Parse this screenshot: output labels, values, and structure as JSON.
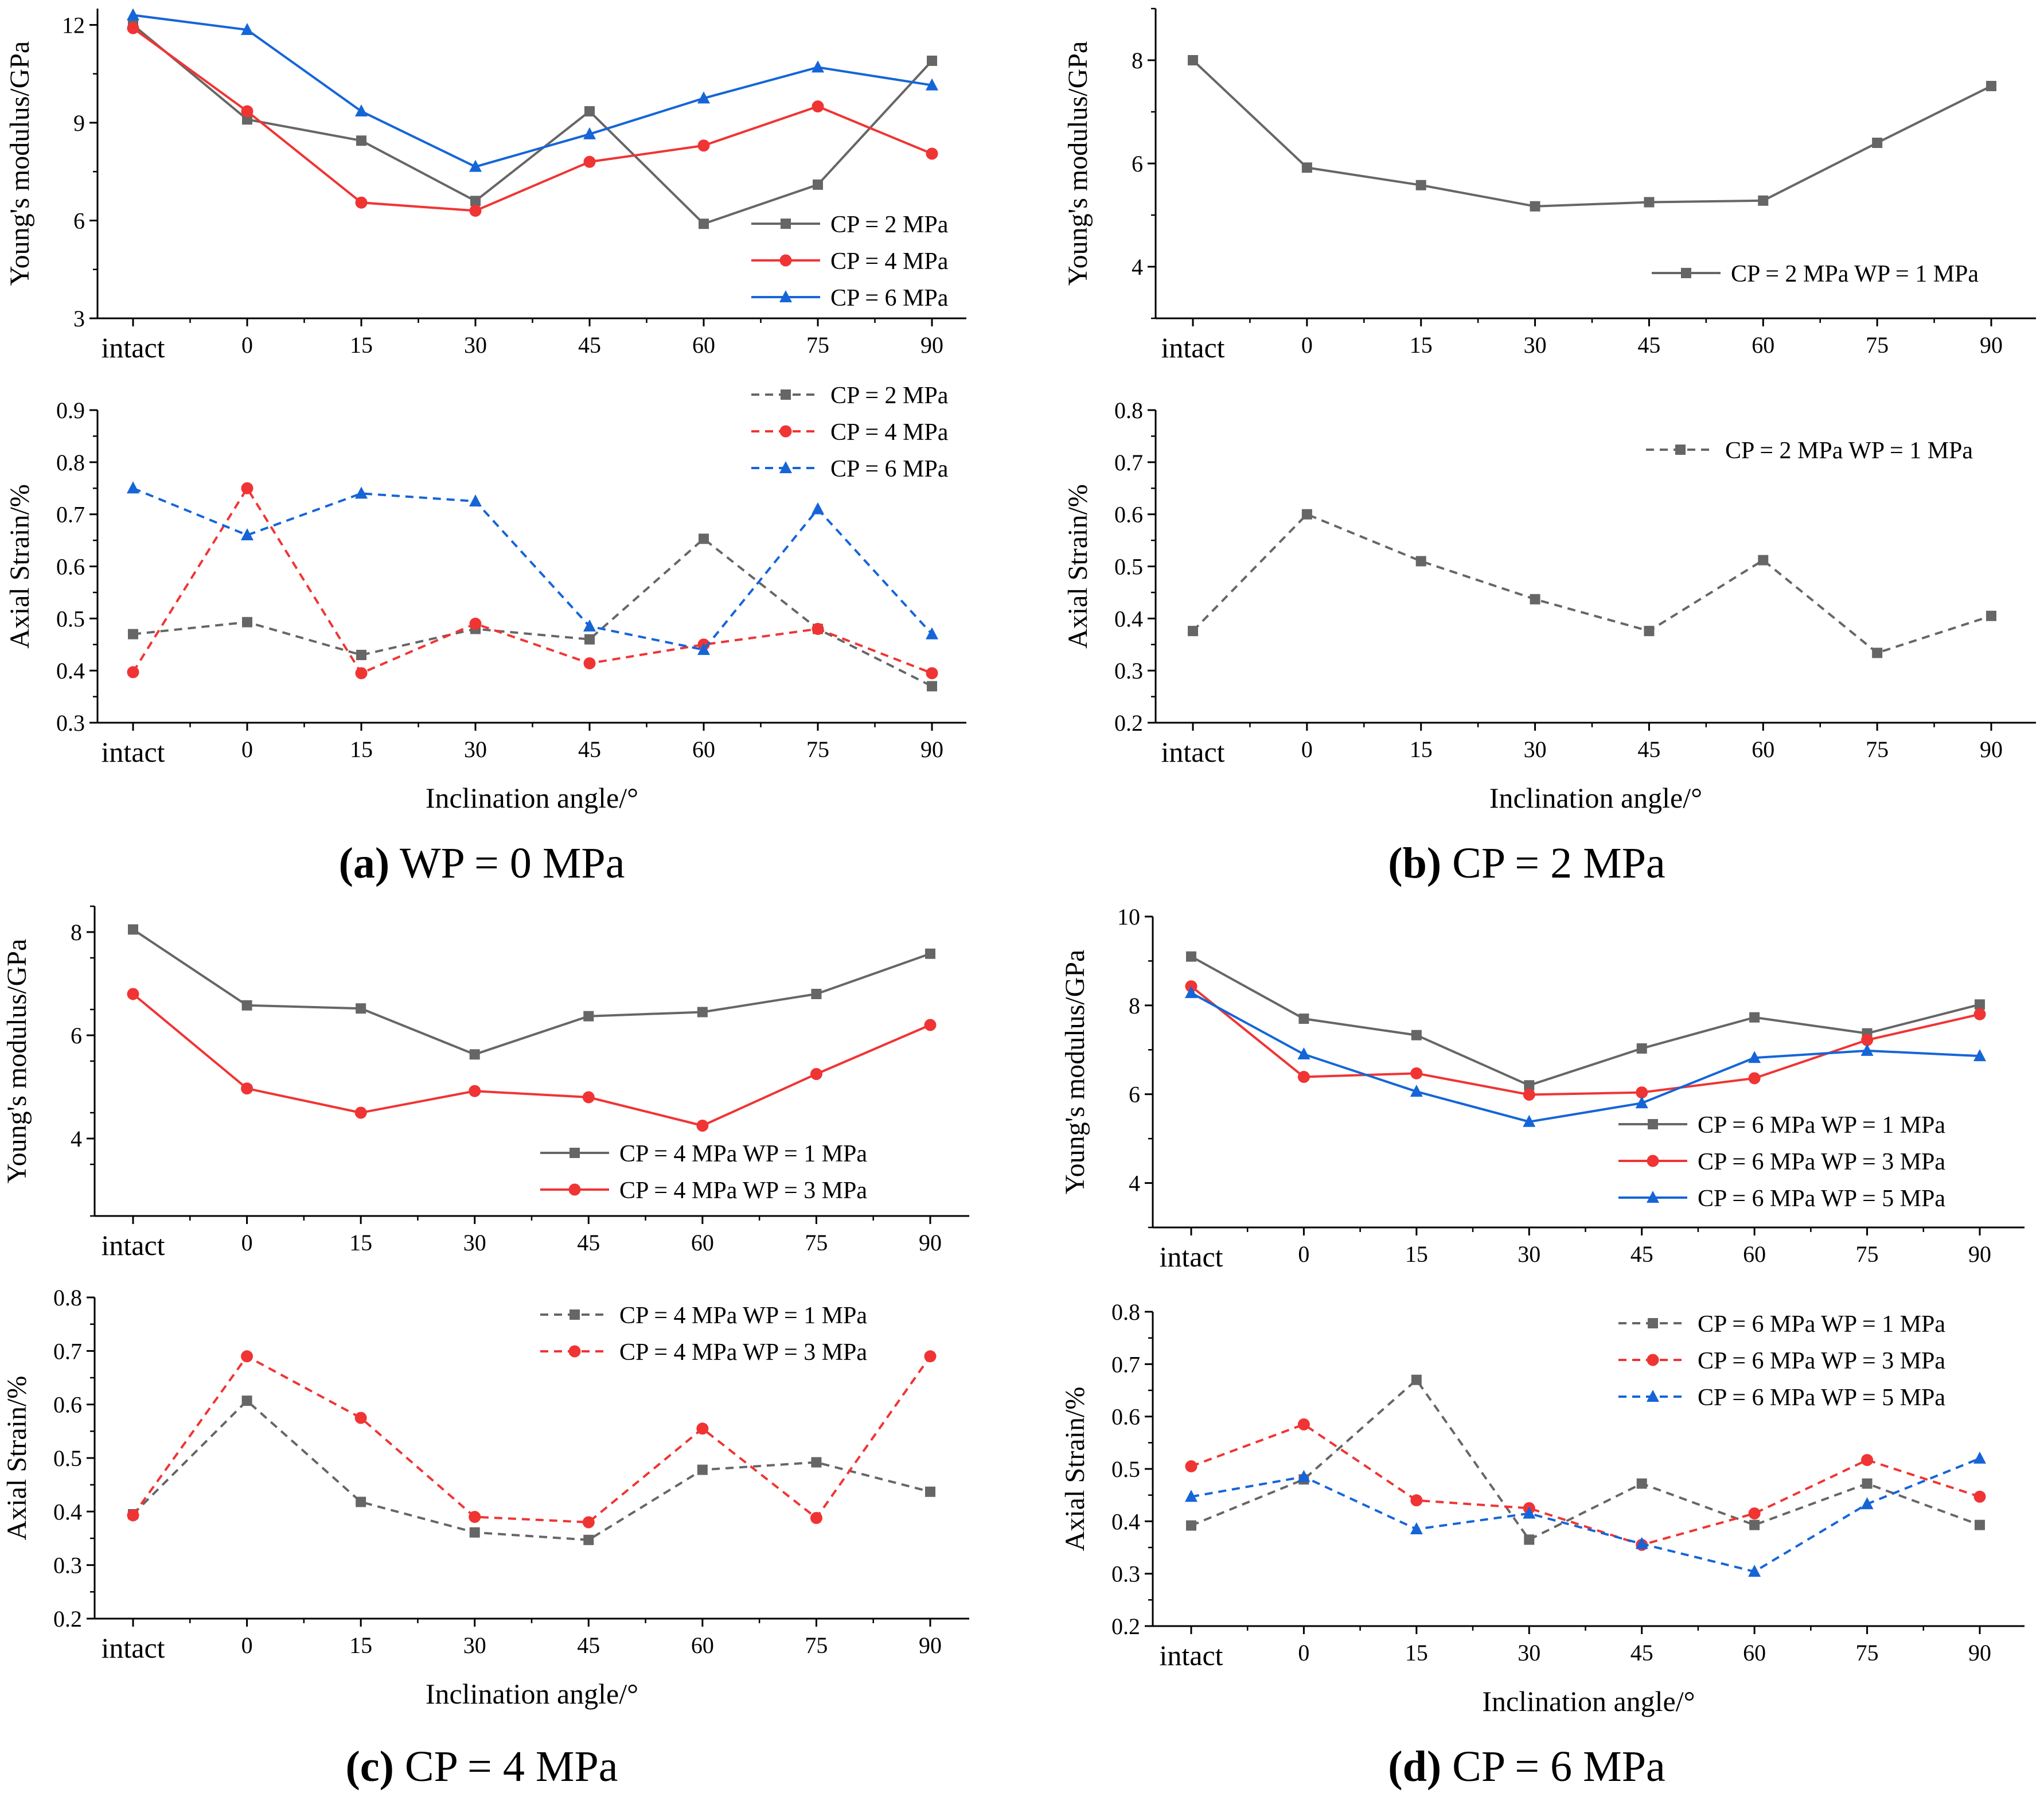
{
  "figure": {
    "panel_titles": [
      {
        "letter": "(a)",
        "rest": " WP = 0 MPa"
      },
      {
        "letter": "(b)",
        "rest": " CP = 2 MPa"
      },
      {
        "letter": "(c)",
        "rest": " CP = 4 MPa"
      },
      {
        "letter": "(d)",
        "rest": " CP = 6 MPa"
      }
    ]
  },
  "colors": {
    "gray": "#666666",
    "red": "#f03434",
    "blue": "#1565d8",
    "axis": "#000000"
  },
  "chart_data": [
    {
      "id": "a-top",
      "type": "line",
      "panel": "(a)",
      "xlabel": "",
      "ylabel": "Young's modulus/GPa",
      "categories": [
        "intact",
        "0",
        "15",
        "30",
        "45",
        "60",
        "75",
        "90"
      ],
      "ylim": [
        3,
        12.5
      ],
      "yticks": [
        3,
        6,
        9,
        12
      ],
      "legend_position": "bottom-right",
      "series": [
        {
          "name": "CP = 2 MPa",
          "color": "gray",
          "marker": "square",
          "dashed": false,
          "values": [
            12.0,
            9.1,
            8.45,
            6.6,
            9.35,
            5.9,
            7.1,
            10.9
          ]
        },
        {
          "name": "CP = 4 MPa",
          "color": "red",
          "marker": "circle",
          "dashed": false,
          "values": [
            11.9,
            9.35,
            6.55,
            6.3,
            7.8,
            8.3,
            9.5,
            8.05
          ]
        },
        {
          "name": "CP = 6 MPa",
          "color": "blue",
          "marker": "triangle",
          "dashed": false,
          "values": [
            12.3,
            11.85,
            9.35,
            7.65,
            8.65,
            9.75,
            10.7,
            10.15
          ]
        }
      ]
    },
    {
      "id": "a-bottom",
      "type": "line",
      "panel": "(a)",
      "xlabel": "Inclination angle/°",
      "ylabel": "Axial Strain/%",
      "categories": [
        "intact",
        "0",
        "15",
        "30",
        "45",
        "60",
        "75",
        "90"
      ],
      "ylim": [
        0.3,
        0.9
      ],
      "yticks": [
        0.3,
        0.4,
        0.5,
        0.6,
        0.7,
        0.8,
        0.9
      ],
      "legend_position": "top-right",
      "series": [
        {
          "name": "CP = 2 MPa",
          "color": "gray",
          "marker": "square",
          "dashed": true,
          "values": [
            0.47,
            0.493,
            0.43,
            0.48,
            0.46,
            0.653,
            0.48,
            0.37
          ]
        },
        {
          "name": "CP = 4 MPa",
          "color": "red",
          "marker": "circle",
          "dashed": true,
          "values": [
            0.397,
            0.75,
            0.395,
            0.49,
            0.414,
            0.45,
            0.48,
            0.395
          ]
        },
        {
          "name": "CP = 6 MPa",
          "color": "blue",
          "marker": "triangle",
          "dashed": true,
          "values": [
            0.75,
            0.66,
            0.74,
            0.725,
            0.485,
            0.44,
            0.71,
            0.47
          ]
        }
      ]
    },
    {
      "id": "b-top",
      "type": "line",
      "panel": "(b)",
      "xlabel": "",
      "ylabel": "Young's modulus/GPa",
      "categories": [
        "intact",
        "0",
        "15",
        "30",
        "45",
        "60",
        "75",
        "90"
      ],
      "ylim": [
        3,
        9
      ],
      "yticks": [
        4,
        6,
        8
      ],
      "legend_position": "bottom-right",
      "series": [
        {
          "name": "CP = 2 MPa WP = 1 MPa",
          "color": "gray",
          "marker": "square",
          "dashed": false,
          "values": [
            8.0,
            5.92,
            5.58,
            5.17,
            5.25,
            5.28,
            6.4,
            7.5
          ]
        }
      ]
    },
    {
      "id": "b-bottom",
      "type": "line",
      "panel": "(b)",
      "xlabel": "Inclination angle/°",
      "ylabel": "Axial Strain/%",
      "categories": [
        "intact",
        "0",
        "15",
        "30",
        "45",
        "60",
        "75",
        "90"
      ],
      "ylim": [
        0.2,
        0.8
      ],
      "yticks": [
        0.2,
        0.3,
        0.4,
        0.5,
        0.6,
        0.7,
        0.8
      ],
      "legend_position": "top-right",
      "series": [
        {
          "name": "CP = 2 MPa WP = 1 MPa",
          "color": "gray",
          "marker": "square",
          "dashed": true,
          "values": [
            0.376,
            0.6,
            0.51,
            0.437,
            0.376,
            0.512,
            0.334,
            0.405
          ]
        }
      ]
    },
    {
      "id": "c-top",
      "type": "line",
      "panel": "(c)",
      "xlabel": "",
      "ylabel": "Young's modulus/GPa",
      "categories": [
        "intact",
        "0",
        "15",
        "30",
        "45",
        "60",
        "75",
        "90"
      ],
      "ylim": [
        2.5,
        8.5
      ],
      "yticks": [
        4,
        6,
        8
      ],
      "legend_position": "bottom-right",
      "series": [
        {
          "name": "CP = 4 MPa WP = 1 MPa",
          "color": "gray",
          "marker": "square",
          "dashed": false,
          "values": [
            8.05,
            6.58,
            6.52,
            5.63,
            6.37,
            6.45,
            6.8,
            7.58
          ]
        },
        {
          "name": "CP = 4 MPa WP = 3 MPa",
          "color": "red",
          "marker": "circle",
          "dashed": false,
          "values": [
            6.8,
            4.97,
            4.5,
            4.92,
            4.8,
            4.25,
            5.25,
            6.2
          ]
        }
      ]
    },
    {
      "id": "c-bottom",
      "type": "line",
      "panel": "(c)",
      "xlabel": "Inclination angle/°",
      "ylabel": "Axial Strain/%",
      "categories": [
        "intact",
        "0",
        "15",
        "30",
        "45",
        "60",
        "75",
        "90"
      ],
      "ylim": [
        0.2,
        0.8
      ],
      "yticks": [
        0.2,
        0.3,
        0.4,
        0.5,
        0.6,
        0.7,
        0.8
      ],
      "legend_position": "top-right",
      "series": [
        {
          "name": "CP = 4 MPa WP = 1 MPa",
          "color": "gray",
          "marker": "square",
          "dashed": true,
          "values": [
            0.395,
            0.607,
            0.418,
            0.361,
            0.347,
            0.478,
            0.492,
            0.437
          ]
        },
        {
          "name": "CP = 4 MPa WP = 3 MPa",
          "color": "red",
          "marker": "circle",
          "dashed": true,
          "values": [
            0.393,
            0.69,
            0.575,
            0.39,
            0.38,
            0.555,
            0.388,
            0.69
          ]
        }
      ]
    },
    {
      "id": "d-top",
      "type": "line",
      "panel": "(d)",
      "xlabel": "",
      "ylabel": "Young's modulus/GPa",
      "categories": [
        "intact",
        "0",
        "15",
        "30",
        "45",
        "60",
        "75",
        "90"
      ],
      "ylim": [
        3,
        10
      ],
      "yticks": [
        4,
        6,
        8,
        10
      ],
      "legend_position": "bottom-right",
      "series": [
        {
          "name": "CP = 6 MPa WP = 1 MPa",
          "color": "gray",
          "marker": "square",
          "dashed": false,
          "values": [
            9.1,
            7.7,
            7.33,
            6.2,
            7.03,
            7.73,
            7.37,
            8.02
          ]
        },
        {
          "name": "CP = 6 MPa WP = 3 MPa",
          "color": "red",
          "marker": "circle",
          "dashed": false,
          "values": [
            8.43,
            6.39,
            6.47,
            5.99,
            6.04,
            6.36,
            7.22,
            7.8
          ]
        },
        {
          "name": "CP = 6 MPa WP = 5 MPa",
          "color": "blue",
          "marker": "triangle",
          "dashed": false,
          "values": [
            8.28,
            6.9,
            6.06,
            5.38,
            5.8,
            6.82,
            6.98,
            6.86
          ]
        }
      ]
    },
    {
      "id": "d-bottom",
      "type": "line",
      "panel": "(d)",
      "xlabel": "Inclination angle/°",
      "ylabel": "Axial Strain/%",
      "categories": [
        "intact",
        "0",
        "15",
        "30",
        "45",
        "60",
        "75",
        "90"
      ],
      "ylim": [
        0.2,
        0.8
      ],
      "yticks": [
        0.2,
        0.3,
        0.4,
        0.5,
        0.6,
        0.7,
        0.8
      ],
      "legend_position": "top-right",
      "series": [
        {
          "name": "CP = 6 MPa WP = 1 MPa",
          "color": "gray",
          "marker": "square",
          "dashed": true,
          "values": [
            0.392,
            0.48,
            0.67,
            0.365,
            0.472,
            0.393,
            0.472,
            0.393
          ]
        },
        {
          "name": "CP = 6 MPa WP = 3 MPa",
          "color": "red",
          "marker": "circle",
          "dashed": true,
          "values": [
            0.505,
            0.585,
            0.44,
            0.425,
            0.355,
            0.415,
            0.517,
            0.447
          ]
        },
        {
          "name": "CP = 6 MPa WP = 5 MPa",
          "color": "blue",
          "marker": "triangle",
          "dashed": true,
          "values": [
            0.447,
            0.485,
            0.385,
            0.415,
            0.357,
            0.304,
            0.433,
            0.52
          ]
        }
      ]
    }
  ]
}
